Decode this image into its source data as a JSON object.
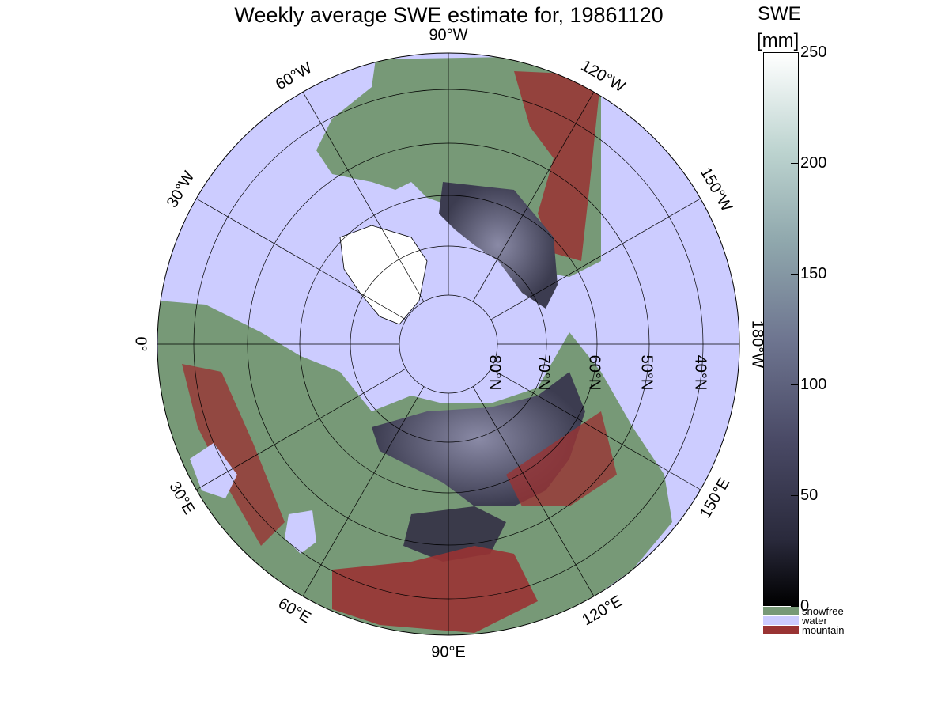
{
  "title": "Weekly average SWE estimate for, 19861120",
  "map": {
    "projection": "north-polar-stereographic",
    "longitude_labels": [
      "90°W",
      "120°W",
      "150°W",
      "180°W",
      "150°E",
      "120°E",
      "90°E",
      "60°E",
      "30°E",
      "0°",
      "30°W",
      "60°W"
    ],
    "latitude_labels": [
      "80°N",
      "70°N",
      "60°N",
      "50°N",
      "40°N"
    ],
    "colors": {
      "water": "#ccccff",
      "snowfree": "#779977",
      "mountain": "#993333",
      "land": "#779977"
    }
  },
  "colorbar": {
    "title": "SWE",
    "unit": "[mm]",
    "ticks": [
      "250",
      "200",
      "150",
      "100",
      "50",
      "0"
    ],
    "range": [
      0,
      250
    ],
    "categories": [
      {
        "label": "snowfree",
        "color": "#779977"
      },
      {
        "label": "water",
        "color": "#ccccff"
      },
      {
        "label": "mountain",
        "color": "#993333"
      }
    ]
  }
}
